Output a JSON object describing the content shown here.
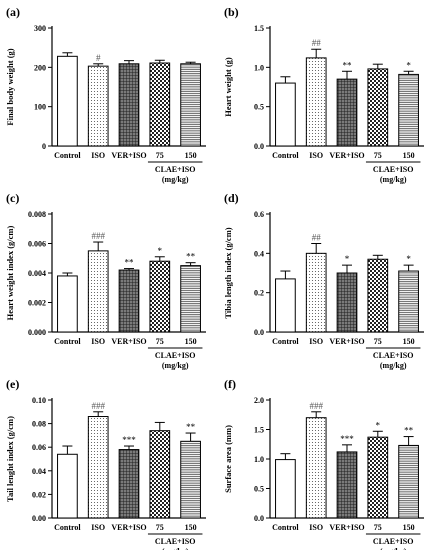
{
  "chart_data": [
    {
      "type": "bar",
      "panel": "(a)",
      "ylabel": "Final body weight (g)",
      "categories": [
        "Control",
        "ISO",
        "VER+ISO",
        "75",
        "150"
      ],
      "group_label": [
        "CLAE+ISO",
        "(mg/kg)"
      ],
      "values": [
        228,
        203,
        209,
        211,
        209
      ],
      "errors": [
        9,
        6,
        8,
        7,
        4
      ],
      "significance": [
        "",
        "#",
        "",
        "",
        ""
      ],
      "ylim": [
        0,
        300
      ],
      "yticks": [
        "0",
        "100",
        "200",
        "300"
      ],
      "tick_values": [
        0,
        100,
        200,
        300
      ],
      "grid": false
    },
    {
      "type": "bar",
      "panel": "(b)",
      "ylabel": "Heart weight (g)",
      "categories": [
        "Control",
        "ISO",
        "VER+ISO",
        "75",
        "150"
      ],
      "group_label": [
        "CLAE+ISO",
        "(mg/kg)"
      ],
      "values": [
        0.8,
        1.12,
        0.85,
        0.98,
        0.91
      ],
      "errors": [
        0.08,
        0.11,
        0.1,
        0.06,
        0.04
      ],
      "significance": [
        "",
        "##",
        "**",
        "",
        "*"
      ],
      "ylim": [
        0,
        1.5
      ],
      "yticks": [
        "0.0",
        "0.5",
        "1.0",
        "1.5"
      ],
      "tick_values": [
        0,
        0.5,
        1.0,
        1.5
      ],
      "grid": false
    },
    {
      "type": "bar",
      "panel": "(c)",
      "ylabel": "Heart weight index (g/cm)",
      "categories": [
        "Control",
        "ISO",
        "VER+ISO",
        "75",
        "150"
      ],
      "group_label": [
        "CLAE+ISO",
        "(mg/kg)"
      ],
      "values": [
        0.0038,
        0.0055,
        0.0042,
        0.0048,
        0.0045
      ],
      "errors": [
        0.0002,
        0.0006,
        0.0001,
        0.0003,
        0.0002
      ],
      "significance": [
        "",
        "###",
        "**",
        "*",
        "**"
      ],
      "ylim": [
        0,
        0.008
      ],
      "yticks": [
        "0.000",
        "0.002",
        "0.004",
        "0.006",
        "0.008"
      ],
      "tick_values": [
        0,
        0.002,
        0.004,
        0.006,
        0.008
      ],
      "grid": false
    },
    {
      "type": "bar",
      "panel": "(d)",
      "ylabel": "Tibia length index (g/cm)",
      "categories": [
        "Control",
        "ISO",
        "VER+ISO",
        "75",
        "150"
      ],
      "group_label": [
        "CLAE+ISO",
        "(mg/kg)"
      ],
      "values": [
        0.27,
        0.4,
        0.3,
        0.37,
        0.31
      ],
      "errors": [
        0.04,
        0.05,
        0.04,
        0.02,
        0.03
      ],
      "significance": [
        "",
        "##",
        "*",
        "",
        "*"
      ],
      "ylim": [
        0,
        0.6
      ],
      "yticks": [
        "0.0",
        "0.2",
        "0.4",
        "0.6"
      ],
      "tick_values": [
        0,
        0.2,
        0.4,
        0.6
      ],
      "grid": false
    },
    {
      "type": "bar",
      "panel": "(e)",
      "ylabel": "Tail lenght index (g/cm)",
      "categories": [
        "Control",
        "ISO",
        "VER+ISO",
        "75",
        "150"
      ],
      "group_label": [
        "CLAE+ISO",
        "(mg/kg)"
      ],
      "values": [
        0.054,
        0.086,
        0.058,
        0.074,
        0.065
      ],
      "errors": [
        0.007,
        0.004,
        0.003,
        0.007,
        0.007
      ],
      "significance": [
        "",
        "###",
        "***",
        "",
        "**"
      ],
      "ylim": [
        0,
        0.1
      ],
      "yticks": [
        "0.00",
        "0.02",
        "0.04",
        "0.06",
        "0.08",
        "0.10"
      ],
      "tick_values": [
        0,
        0.02,
        0.04,
        0.06,
        0.08,
        0.1
      ],
      "grid": false
    },
    {
      "type": "bar",
      "panel": "(f)",
      "ylabel": "Surface area (mm)",
      "categories": [
        "Control",
        "ISO",
        "VER+ISO",
        "75",
        "150"
      ],
      "group_label": [
        "CLAE+ISO",
        "(mg/kg)"
      ],
      "values": [
        0.99,
        1.7,
        1.12,
        1.37,
        1.23
      ],
      "errors": [
        0.1,
        0.1,
        0.12,
        0.1,
        0.15
      ],
      "significance": [
        "",
        "###",
        "***",
        "*",
        "**"
      ],
      "ylim": [
        0,
        2.0
      ],
      "yticks": [
        "0.0",
        "0.5",
        "1.0",
        "1.5",
        "2.0"
      ],
      "tick_values": [
        0,
        0.5,
        1.0,
        1.5,
        2.0
      ],
      "grid": false
    }
  ],
  "bar_patterns": [
    "white",
    "dots",
    "grid",
    "checker",
    "hlines"
  ],
  "significance_colors": [
    "#555555",
    "#000000"
  ]
}
